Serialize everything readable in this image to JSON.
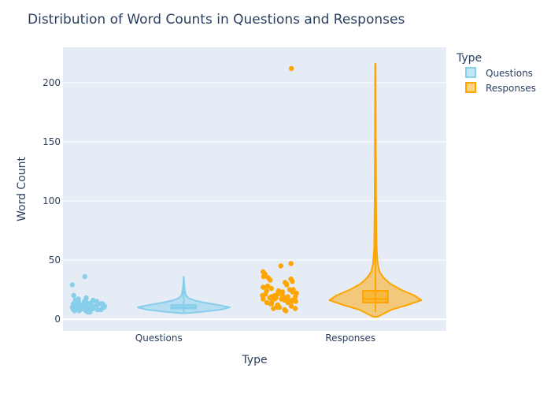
{
  "chart_data": {
    "type": "violin",
    "title": "Distribution of Word Counts in Questions and Responses",
    "xlabel": "Type",
    "ylabel": "Word Count",
    "categories": [
      "Questions",
      "Responses"
    ],
    "ylim": [
      -10,
      230
    ],
    "yticks": [
      0,
      50,
      100,
      150,
      200
    ],
    "grid": true,
    "legend": {
      "title": "Type",
      "placement": "top-right",
      "entries": [
        "Questions",
        "Responses"
      ]
    },
    "series": [
      {
        "name": "Questions",
        "color": "#87CEEB",
        "min": 5,
        "q1": 9,
        "median": 10,
        "q3": 12,
        "max": 36,
        "fence_upper": 16,
        "points_y": [
          6,
          6,
          7,
          7,
          7,
          7,
          8,
          8,
          8,
          8,
          8,
          8,
          9,
          9,
          9,
          9,
          9,
          9,
          9,
          9,
          10,
          10,
          10,
          10,
          10,
          10,
          10,
          10,
          10,
          11,
          11,
          11,
          11,
          11,
          11,
          11,
          12,
          12,
          12,
          12,
          12,
          12,
          13,
          13,
          13,
          13,
          14,
          14,
          14,
          15,
          15,
          16,
          16,
          17,
          18,
          20,
          29,
          36
        ],
        "density": [
          [
            5,
            0.05
          ],
          [
            6,
            0.35
          ],
          [
            8,
            0.8
          ],
          [
            10,
            1.0
          ],
          [
            12,
            0.75
          ],
          [
            14,
            0.45
          ],
          [
            16,
            0.22
          ],
          [
            18,
            0.1
          ],
          [
            20,
            0.05
          ],
          [
            25,
            0.02
          ],
          [
            30,
            0.01
          ],
          [
            36,
            0.0
          ]
        ]
      },
      {
        "name": "Responses",
        "color": "#FFA500",
        "min": 6,
        "q1": 14,
        "median": 17,
        "q3": 24,
        "max": 212,
        "fence_upper": 40,
        "points_y": [
          7,
          8,
          9,
          9,
          10,
          10,
          11,
          11,
          12,
          12,
          13,
          13,
          14,
          14,
          14,
          15,
          15,
          15,
          16,
          16,
          16,
          16,
          17,
          17,
          17,
          17,
          18,
          18,
          18,
          19,
          19,
          19,
          20,
          20,
          20,
          21,
          21,
          22,
          22,
          23,
          23,
          24,
          24,
          25,
          25,
          26,
          27,
          28,
          29,
          30,
          31,
          32,
          33,
          34,
          35,
          36,
          38,
          40,
          45,
          47,
          212
        ],
        "density": [
          [
            2,
            0.05
          ],
          [
            8,
            0.35
          ],
          [
            12,
            0.7
          ],
          [
            16,
            1.0
          ],
          [
            20,
            0.85
          ],
          [
            25,
            0.55
          ],
          [
            30,
            0.32
          ],
          [
            35,
            0.18
          ],
          [
            40,
            0.09
          ],
          [
            47,
            0.05
          ],
          [
            60,
            0.025
          ],
          [
            100,
            0.015
          ],
          [
            150,
            0.01
          ],
          [
            216,
            0.005
          ]
        ]
      }
    ]
  }
}
